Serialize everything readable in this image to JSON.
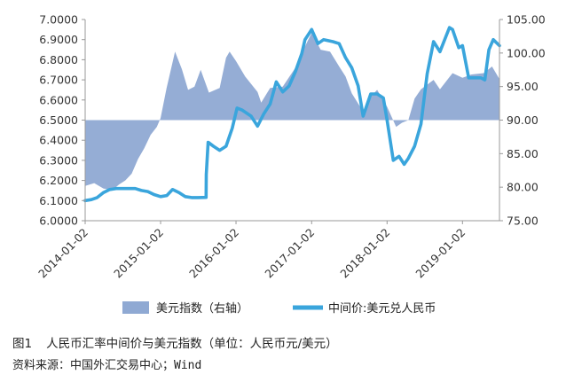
{
  "chart_data": {
    "type": "line",
    "title": "",
    "x_ticks": [
      "2014-01-02",
      "2015-01-02",
      "2016-01-02",
      "2017-01-02",
      "2018-01-02",
      "2019-01-02"
    ],
    "x_range": [
      "2014-01-02",
      "2019-06-30"
    ],
    "y_left": {
      "range": [
        6.0,
        7.0
      ],
      "ticks": [
        "7.0000",
        "6.9000",
        "6.8000",
        "6.7000",
        "6.6000",
        "6.5000",
        "6.4000",
        "6.3000",
        "6.2000",
        "6.1000",
        "6.0000"
      ]
    },
    "y_right": {
      "range": [
        75,
        105
      ],
      "ticks": [
        "105.00",
        "100.00",
        "95.00",
        "90.00",
        "85.00",
        "80.00",
        "75.00"
      ],
      "baseline": 90
    },
    "grid": false,
    "legend_position": "bottom",
    "series": [
      {
        "name": "美元指数（右轴）",
        "axis": "right",
        "style": "area",
        "color": "#8fa9d3",
        "points": [
          [
            "2014-01-02",
            80.2
          ],
          [
            "2014-02-15",
            80.6
          ],
          [
            "2014-04-01",
            79.8
          ],
          [
            "2014-05-15",
            79.6
          ],
          [
            "2014-06-15",
            80.4
          ],
          [
            "2014-07-15",
            81.0
          ],
          [
            "2014-08-15",
            82.0
          ],
          [
            "2014-09-15",
            84.2
          ],
          [
            "2014-10-15",
            85.8
          ],
          [
            "2014-11-15",
            87.8
          ],
          [
            "2014-12-15",
            89.0
          ],
          [
            "2015-01-02",
            90.3
          ],
          [
            "2015-01-31",
            94.8
          ],
          [
            "2015-03-13",
            100.2
          ],
          [
            "2015-04-15",
            97.6
          ],
          [
            "2015-05-15",
            94.5
          ],
          [
            "2015-06-15",
            95.0
          ],
          [
            "2015-07-15",
            97.5
          ],
          [
            "2015-08-24",
            94.1
          ],
          [
            "2015-10-15",
            94.8
          ],
          [
            "2015-11-15",
            99.3
          ],
          [
            "2015-12-02",
            100.2
          ],
          [
            "2016-01-02",
            98.8
          ],
          [
            "2016-02-15",
            96.5
          ],
          [
            "2016-04-15",
            94.2
          ],
          [
            "2016-05-03",
            92.6
          ],
          [
            "2016-06-15",
            94.8
          ],
          [
            "2016-08-15",
            95.0
          ],
          [
            "2016-10-15",
            97.8
          ],
          [
            "2016-11-15",
            100.0
          ],
          [
            "2017-01-02",
            103.0
          ],
          [
            "2017-02-15",
            100.5
          ],
          [
            "2017-04-01",
            100.2
          ],
          [
            "2017-05-15",
            98.0
          ],
          [
            "2017-06-15",
            96.5
          ],
          [
            "2017-07-15",
            94.0
          ],
          [
            "2017-09-08",
            91.3
          ],
          [
            "2017-10-15",
            93.5
          ],
          [
            "2017-11-15",
            94.5
          ],
          [
            "2018-01-02",
            92.0
          ],
          [
            "2018-02-15",
            89.0
          ],
          [
            "2018-03-15",
            89.6
          ],
          [
            "2018-04-15",
            90.0
          ],
          [
            "2018-05-15",
            93.2
          ],
          [
            "2018-06-15",
            94.6
          ],
          [
            "2018-08-15",
            96.0
          ],
          [
            "2018-09-15",
            94.6
          ],
          [
            "2018-11-15",
            97.0
          ],
          [
            "2019-01-02",
            96.3
          ],
          [
            "2019-02-15",
            96.8
          ],
          [
            "2019-04-15",
            97.0
          ],
          [
            "2019-05-25",
            98.0
          ],
          [
            "2019-06-30",
            96.1
          ]
        ]
      },
      {
        "name": "中间价:美元兑人民币",
        "axis": "left",
        "style": "line",
        "color": "#3aa5dc",
        "points": [
          [
            "2014-01-02",
            6.1
          ],
          [
            "2014-02-01",
            6.105
          ],
          [
            "2014-03-01",
            6.115
          ],
          [
            "2014-04-01",
            6.14
          ],
          [
            "2014-05-01",
            6.155
          ],
          [
            "2014-06-01",
            6.16
          ],
          [
            "2014-07-01",
            6.16
          ],
          [
            "2014-08-01",
            6.16
          ],
          [
            "2014-09-01",
            6.16
          ],
          [
            "2014-10-01",
            6.15
          ],
          [
            "2014-11-01",
            6.145
          ],
          [
            "2014-12-01",
            6.13
          ],
          [
            "2015-01-02",
            6.12
          ],
          [
            "2015-02-01",
            6.125
          ],
          [
            "2015-03-01",
            6.155
          ],
          [
            "2015-04-01",
            6.14
          ],
          [
            "2015-05-01",
            6.12
          ],
          [
            "2015-06-01",
            6.115
          ],
          [
            "2015-07-01",
            6.115
          ],
          [
            "2015-08-10",
            6.116
          ],
          [
            "2015-08-11",
            6.23
          ],
          [
            "2015-08-20",
            6.39
          ],
          [
            "2015-09-15",
            6.37
          ],
          [
            "2015-10-15",
            6.35
          ],
          [
            "2015-11-15",
            6.37
          ],
          [
            "2015-12-15",
            6.46
          ],
          [
            "2016-01-07",
            6.56
          ],
          [
            "2016-02-01",
            6.55
          ],
          [
            "2016-03-15",
            6.52
          ],
          [
            "2016-04-15",
            6.47
          ],
          [
            "2016-05-15",
            6.53
          ],
          [
            "2016-06-15",
            6.58
          ],
          [
            "2016-07-15",
            6.69
          ],
          [
            "2016-08-15",
            6.64
          ],
          [
            "2016-09-15",
            6.67
          ],
          [
            "2016-10-15",
            6.74
          ],
          [
            "2016-11-15",
            6.83
          ],
          [
            "2016-12-01",
            6.9
          ],
          [
            "2017-01-02",
            6.95
          ],
          [
            "2017-02-01",
            6.88
          ],
          [
            "2017-03-01",
            6.9
          ],
          [
            "2017-04-15",
            6.89
          ],
          [
            "2017-05-15",
            6.88
          ],
          [
            "2017-06-15",
            6.81
          ],
          [
            "2017-07-15",
            6.76
          ],
          [
            "2017-08-15",
            6.67
          ],
          [
            "2017-09-08",
            6.52
          ],
          [
            "2017-10-15",
            6.63
          ],
          [
            "2017-11-15",
            6.63
          ],
          [
            "2017-12-15",
            6.61
          ],
          [
            "2018-01-02",
            6.5
          ],
          [
            "2018-02-01",
            6.3
          ],
          [
            "2018-03-01",
            6.32
          ],
          [
            "2018-03-26",
            6.28
          ],
          [
            "2018-04-15",
            6.31
          ],
          [
            "2018-05-15",
            6.37
          ],
          [
            "2018-06-15",
            6.48
          ],
          [
            "2018-07-15",
            6.73
          ],
          [
            "2018-08-15",
            6.89
          ],
          [
            "2018-09-15",
            6.84
          ],
          [
            "2018-10-31",
            6.96
          ],
          [
            "2018-11-15",
            6.95
          ],
          [
            "2018-12-15",
            6.86
          ],
          [
            "2019-01-02",
            6.87
          ],
          [
            "2019-02-01",
            6.71
          ],
          [
            "2019-03-01",
            6.71
          ],
          [
            "2019-04-01",
            6.71
          ],
          [
            "2019-04-20",
            6.7
          ],
          [
            "2019-05-10",
            6.85
          ],
          [
            "2019-05-31",
            6.9
          ],
          [
            "2019-06-30",
            6.87
          ]
        ]
      }
    ]
  },
  "caption": {
    "figure_no": "图1",
    "title": "人民币汇率中间价与美元指数（单位：人民币元/美元）",
    "source": "资料来源：中国外汇交易中心；Wind"
  }
}
